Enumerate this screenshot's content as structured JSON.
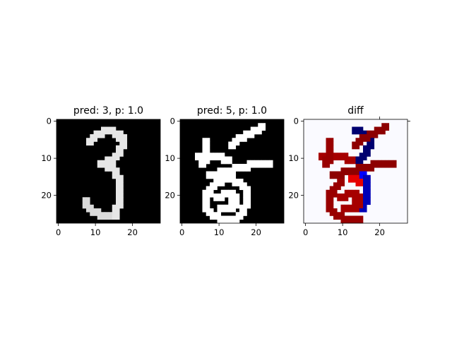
{
  "chart_data": [
    {
      "type": "heatmap",
      "title": "pred: 3, p: 1.0",
      "colormap": "gray",
      "xticks": [
        "0",
        "10",
        "20"
      ],
      "yticks": [
        "0",
        "10",
        "20"
      ],
      "xlim": [
        -0.5,
        27.5
      ],
      "ylim": [
        27.5,
        -0.5
      ],
      "strokes": [
        {
          "pts": [
            [
              8,
              5
            ],
            [
              10,
              3
            ],
            [
              13,
              2
            ],
            [
              16,
              3
            ],
            [
              17,
              5
            ],
            [
              16,
              8
            ],
            [
              14,
              10
            ],
            [
              11,
              11
            ]
          ],
          "v": 0.9
        },
        {
          "pts": [
            [
              11,
              11
            ],
            [
              14,
              12
            ],
            [
              16,
              15
            ],
            [
              16,
              20
            ],
            [
              15,
              25
            ]
          ],
          "v": 0.9
        },
        {
          "pts": [
            [
              15,
              25
            ],
            [
              12,
              25
            ],
            [
              9,
              24
            ],
            [
              7,
              22
            ],
            [
              7,
              21
            ]
          ],
          "v": 0.85
        }
      ]
    },
    {
      "type": "heatmap",
      "title": "pred: 5, p: 1.0",
      "colormap": "gray",
      "xticks": [
        "0",
        "10",
        "20"
      ],
      "yticks": [
        "0",
        "10",
        "20"
      ],
      "xlim": [
        -0.5,
        27.5
      ],
      "ylim": [
        27.5,
        -0.5
      ],
      "strokes": [
        {
          "pts": [
            [
              13,
              6
            ],
            [
              15,
              4
            ],
            [
              18,
              3
            ],
            [
              21,
              1
            ]
          ],
          "v": 1.0
        },
        {
          "pts": [
            [
              6,
              5
            ],
            [
              6,
              9
            ],
            [
              5,
              11
            ]
          ],
          "v": 1.0
        },
        {
          "pts": [
            [
              4,
              9
            ],
            [
              9,
              9
            ],
            [
              12,
              10
            ]
          ],
          "v": 1.0
        },
        {
          "pts": [
            [
              7,
              14
            ],
            [
              12,
              13
            ],
            [
              15,
              12
            ],
            [
              20,
              11
            ],
            [
              23,
              11
            ]
          ],
          "v": 1.0
        },
        {
          "pts": [
            [
              12,
              13
            ],
            [
              11,
              15
            ],
            [
              9,
              16
            ],
            [
              7,
              18
            ],
            [
              6,
              20
            ],
            [
              6,
              23
            ],
            [
              8,
              25
            ],
            [
              11,
              26
            ],
            [
              14,
              26
            ],
            [
              16,
              24
            ]
          ],
          "v": 1.0
        },
        {
          "pts": [
            [
              12,
              15
            ],
            [
              15,
              16
            ],
            [
              17,
              18
            ],
            [
              17,
              21
            ],
            [
              16,
              24
            ]
          ],
          "v": 1.0
        },
        {
          "pts": [
            [
              9,
              20
            ],
            [
              12,
              19
            ],
            [
              14,
              20
            ],
            [
              14,
              22
            ],
            [
              12,
              23
            ],
            [
              10,
              23
            ]
          ],
          "v": 1.0
        }
      ]
    },
    {
      "type": "heatmap",
      "title": "diff",
      "colormap": "seismic",
      "xticks": [
        "0",
        "10",
        "20"
      ],
      "yticks": [
        "0",
        "10",
        "20"
      ],
      "xlim": [
        -0.5,
        27.5
      ],
      "ylim": [
        27.5,
        -0.5
      ],
      "strokes": [
        {
          "pts": [
            [
              13,
              6
            ],
            [
              15,
              4
            ],
            [
              18,
              3
            ],
            [
              21,
              1
            ]
          ],
          "v": 0.95
        },
        {
          "pts": [
            [
              6,
              5
            ],
            [
              6,
              9
            ],
            [
              5,
              11
            ]
          ],
          "v": 0.9
        },
        {
          "pts": [
            [
              4,
              9
            ],
            [
              9,
              9
            ],
            [
              12,
              10
            ]
          ],
          "v": 0.85
        },
        {
          "pts": [
            [
              7,
              14
            ],
            [
              12,
              13
            ],
            [
              15,
              12
            ],
            [
              20,
              11
            ],
            [
              23,
              11
            ]
          ],
          "v": 0.95
        },
        {
          "pts": [
            [
              9,
              16
            ],
            [
              7,
              18
            ],
            [
              6,
              20
            ],
            [
              6,
              23
            ],
            [
              8,
              25
            ],
            [
              11,
              26
            ],
            [
              14,
              26
            ]
          ],
          "v": 0.9
        },
        {
          "pts": [
            [
              12,
              15
            ],
            [
              15,
              16
            ]
          ],
          "v": 0.6
        },
        {
          "pts": [
            [
              9,
              20
            ],
            [
              12,
              19
            ],
            [
              14,
              20
            ],
            [
              14,
              22
            ],
            [
              12,
              23
            ],
            [
              10,
              23
            ]
          ],
          "v": 0.85
        },
        {
          "pts": [
            [
              13,
              2
            ],
            [
              16,
              3
            ],
            [
              17,
              5
            ],
            [
              16,
              8
            ],
            [
              14,
              10
            ]
          ],
          "v": -0.9
        },
        {
          "pts": [
            [
              16,
              15
            ],
            [
              16,
              20
            ],
            [
              15,
              23
            ]
          ],
          "v": -0.7
        },
        {
          "pts": [
            [
              14,
              12
            ],
            [
              15,
              14
            ]
          ],
          "v": -0.5
        }
      ]
    }
  ]
}
